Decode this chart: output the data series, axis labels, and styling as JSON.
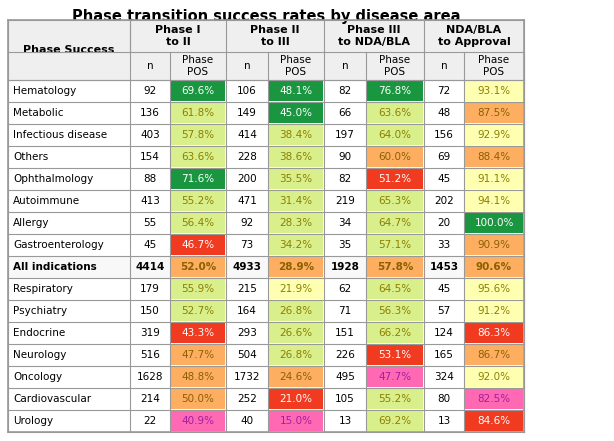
{
  "title": "Phase transition success rates by disease area",
  "rows": [
    {
      "label": "Hematology",
      "bold": false,
      "vals": [
        "92",
        "69.6%",
        "106",
        "48.1%",
        "82",
        "76.8%",
        "72",
        "93.1%"
      ]
    },
    {
      "label": "Metabolic",
      "bold": false,
      "vals": [
        "136",
        "61.8%",
        "149",
        "45.0%",
        "66",
        "63.6%",
        "48",
        "87.5%"
      ]
    },
    {
      "label": "Infectious disease",
      "bold": false,
      "vals": [
        "403",
        "57.8%",
        "414",
        "38.4%",
        "197",
        "64.0%",
        "156",
        "92.9%"
      ]
    },
    {
      "label": "Others",
      "bold": false,
      "vals": [
        "154",
        "63.6%",
        "228",
        "38.6%",
        "90",
        "60.0%",
        "69",
        "88.4%"
      ]
    },
    {
      "label": "Ophthalmology",
      "bold": false,
      "vals": [
        "88",
        "71.6%",
        "200",
        "35.5%",
        "82",
        "51.2%",
        "45",
        "91.1%"
      ]
    },
    {
      "label": "Autoimmune",
      "bold": false,
      "vals": [
        "413",
        "55.2%",
        "471",
        "31.4%",
        "219",
        "65.3%",
        "202",
        "94.1%"
      ]
    },
    {
      "label": "Allergy",
      "bold": false,
      "vals": [
        "55",
        "56.4%",
        "92",
        "28.3%",
        "34",
        "64.7%",
        "20",
        "100.0%"
      ]
    },
    {
      "label": "Gastroenterology",
      "bold": false,
      "vals": [
        "45",
        "46.7%",
        "73",
        "34.2%",
        "35",
        "57.1%",
        "33",
        "90.9%"
      ]
    },
    {
      "label": "All indications",
      "bold": true,
      "vals": [
        "4414",
        "52.0%",
        "4933",
        "28.9%",
        "1928",
        "57.8%",
        "1453",
        "90.6%"
      ]
    },
    {
      "label": "Respiratory",
      "bold": false,
      "vals": [
        "179",
        "55.9%",
        "215",
        "21.9%",
        "62",
        "64.5%",
        "45",
        "95.6%"
      ]
    },
    {
      "label": "Psychiatry",
      "bold": false,
      "vals": [
        "150",
        "52.7%",
        "164",
        "26.8%",
        "71",
        "56.3%",
        "57",
        "91.2%"
      ]
    },
    {
      "label": "Endocrine",
      "bold": false,
      "vals": [
        "319",
        "43.3%",
        "293",
        "26.6%",
        "151",
        "66.2%",
        "124",
        "86.3%"
      ]
    },
    {
      "label": "Neurology",
      "bold": false,
      "vals": [
        "516",
        "47.7%",
        "504",
        "26.8%",
        "226",
        "53.1%",
        "165",
        "86.7%"
      ]
    },
    {
      "label": "Oncology",
      "bold": false,
      "vals": [
        "1628",
        "48.8%",
        "1732",
        "24.6%",
        "495",
        "47.7%",
        "324",
        "92.0%"
      ]
    },
    {
      "label": "Cardiovascular",
      "bold": false,
      "vals": [
        "214",
        "50.0%",
        "252",
        "21.0%",
        "105",
        "55.2%",
        "80",
        "82.5%"
      ]
    },
    {
      "label": "Urology",
      "bold": false,
      "vals": [
        "22",
        "40.9%",
        "40",
        "15.0%",
        "13",
        "69.2%",
        "13",
        "84.6%"
      ]
    }
  ],
  "cell_colors": [
    [
      "none",
      "#1a9641",
      "none",
      "#1a9641",
      "none",
      "#1a9641",
      "none",
      "#ffffb2"
    ],
    [
      "none",
      "#d9ef8b",
      "none",
      "#1a9641",
      "none",
      "#d9ef8b",
      "none",
      "#fdae61"
    ],
    [
      "none",
      "#d9ef8b",
      "none",
      "#d9ef8b",
      "none",
      "#d9ef8b",
      "none",
      "#ffffb2"
    ],
    [
      "none",
      "#d9ef8b",
      "none",
      "#d9ef8b",
      "none",
      "#fdae61",
      "none",
      "#fdae61"
    ],
    [
      "none",
      "#1a9641",
      "none",
      "#d9ef8b",
      "none",
      "#f03b20",
      "none",
      "#ffffb2"
    ],
    [
      "none",
      "#d9ef8b",
      "none",
      "#d9ef8b",
      "none",
      "#d9ef8b",
      "none",
      "#ffffb2"
    ],
    [
      "none",
      "#d9ef8b",
      "none",
      "#d9ef8b",
      "none",
      "#d9ef8b",
      "none",
      "#1a9641"
    ],
    [
      "none",
      "#f03b20",
      "none",
      "#d9ef8b",
      "none",
      "#d9ef8b",
      "none",
      "#fdae61"
    ],
    [
      "none",
      "#fdae61",
      "none",
      "#fdae61",
      "none",
      "#fdae61",
      "none",
      "#fdae61"
    ],
    [
      "none",
      "#d9ef8b",
      "none",
      "#ffffb2",
      "none",
      "#d9ef8b",
      "none",
      "#ffffb2"
    ],
    [
      "none",
      "#d9ef8b",
      "none",
      "#d9ef8b",
      "none",
      "#d9ef8b",
      "none",
      "#ffffb2"
    ],
    [
      "none",
      "#f03b20",
      "none",
      "#d9ef8b",
      "none",
      "#d9ef8b",
      "none",
      "#f03b20"
    ],
    [
      "none",
      "#fdae61",
      "none",
      "#d9ef8b",
      "none",
      "#f03b20",
      "none",
      "#fdae61"
    ],
    [
      "none",
      "#fdae61",
      "none",
      "#fdae61",
      "none",
      "#ff69b4",
      "none",
      "#ffffb2"
    ],
    [
      "none",
      "#fdae61",
      "none",
      "#f03b20",
      "none",
      "#d9ef8b",
      "none",
      "#ff69b4"
    ],
    [
      "none",
      "#ff69b4",
      "none",
      "#ff69b4",
      "none",
      "#d9ef8b",
      "none",
      "#f03b20"
    ]
  ],
  "text_colors_pos": [
    [
      "#000000",
      "#ffffff",
      "#000000",
      "#ffffff",
      "#000000",
      "#ffffff",
      "#000000",
      "#8B8000"
    ],
    [
      "#000000",
      "#8B8000",
      "#000000",
      "#ffffff",
      "#000000",
      "#8B8000",
      "#000000",
      "#8B6000"
    ],
    [
      "#000000",
      "#8B8000",
      "#000000",
      "#8B8000",
      "#000000",
      "#8B8000",
      "#000000",
      "#8B8000"
    ],
    [
      "#000000",
      "#8B8000",
      "#000000",
      "#8B8000",
      "#000000",
      "#8B6000",
      "#000000",
      "#8B6000"
    ],
    [
      "#000000",
      "#ffffff",
      "#000000",
      "#8B8000",
      "#000000",
      "#ffffff",
      "#000000",
      "#8B8000"
    ],
    [
      "#000000",
      "#8B8000",
      "#000000",
      "#8B8000",
      "#000000",
      "#8B8000",
      "#000000",
      "#8B8000"
    ],
    [
      "#000000",
      "#8B8000",
      "#000000",
      "#8B8000",
      "#000000",
      "#8B8000",
      "#000000",
      "#ffffff"
    ],
    [
      "#000000",
      "#ffffff",
      "#000000",
      "#8B8000",
      "#000000",
      "#8B8000",
      "#000000",
      "#8B6000"
    ],
    [
      "#000000",
      "#8B6000",
      "#000000",
      "#8B6000",
      "#000000",
      "#8B6000",
      "#000000",
      "#8B6000"
    ],
    [
      "#000000",
      "#8B8000",
      "#000000",
      "#8B8000",
      "#000000",
      "#8B8000",
      "#000000",
      "#8B8000"
    ],
    [
      "#000000",
      "#8B8000",
      "#000000",
      "#8B8000",
      "#000000",
      "#8B8000",
      "#000000",
      "#8B8000"
    ],
    [
      "#000000",
      "#ffffff",
      "#000000",
      "#8B8000",
      "#000000",
      "#8B8000",
      "#000000",
      "#ffffff"
    ],
    [
      "#000000",
      "#8B6000",
      "#000000",
      "#8B8000",
      "#000000",
      "#ffffff",
      "#000000",
      "#8B6000"
    ],
    [
      "#000000",
      "#8B6000",
      "#000000",
      "#8B6000",
      "#000000",
      "#a020a0",
      "#000000",
      "#8B8000"
    ],
    [
      "#000000",
      "#8B6000",
      "#000000",
      "#ffffff",
      "#000000",
      "#8B8000",
      "#000000",
      "#a020a0"
    ],
    [
      "#000000",
      "#a020a0",
      "#000000",
      "#a020a0",
      "#000000",
      "#8B8000",
      "#000000",
      "#ffffff"
    ]
  ],
  "col_groups": [
    {
      "label": "Phase I\nto II",
      "start": 0,
      "end": 2
    },
    {
      "label": "Phase II\nto III",
      "start": 2,
      "end": 4
    },
    {
      "label": "Phase III\nto NDA/BLA",
      "start": 4,
      "end": 6
    },
    {
      "label": "NDA/BLA\nto Approval",
      "start": 6,
      "end": 8
    }
  ],
  "col_sub": [
    "n",
    "Phase\nPOS",
    "n",
    "Phase\nPOS",
    "n",
    "Phase\nPOS",
    "n",
    "Phase\nPOS"
  ],
  "row_header_label": "Phase Success",
  "background_color": "#ffffff",
  "grid_color": "#999999",
  "title_fontsize": 10.5,
  "cell_fontsize": 7.5,
  "header_fontsize": 8,
  "subheader_fontsize": 7.5
}
